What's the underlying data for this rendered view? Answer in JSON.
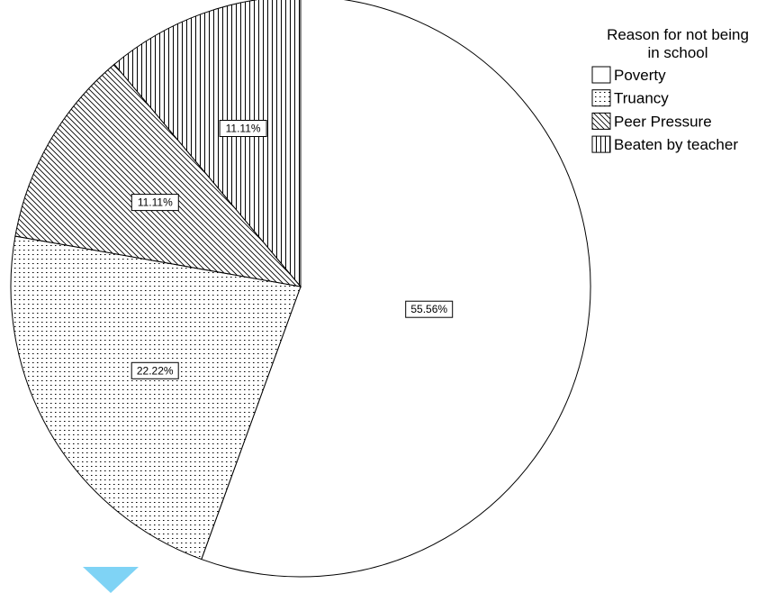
{
  "chart_data": {
    "type": "pie",
    "categories": [
      "Poverty",
      "Truancy",
      "Peer Pressure",
      "Beaten by teacher"
    ],
    "values": [
      55.56,
      22.22,
      11.11,
      11.11
    ],
    "data_labels": [
      "55.56%",
      "22.22%",
      "11.11%",
      "11.11%"
    ],
    "patterns": [
      "none",
      "dots",
      "diagonal-lines",
      "vertical-lines"
    ],
    "start_angle": "12 o'clock",
    "direction": "clockwise",
    "legend": {
      "title_lines": [
        "Reason for not being",
        "in school"
      ],
      "placement": "top-right"
    }
  },
  "overlay": {
    "icon": "chevron-down-icon",
    "color": "#7fd3f5"
  }
}
